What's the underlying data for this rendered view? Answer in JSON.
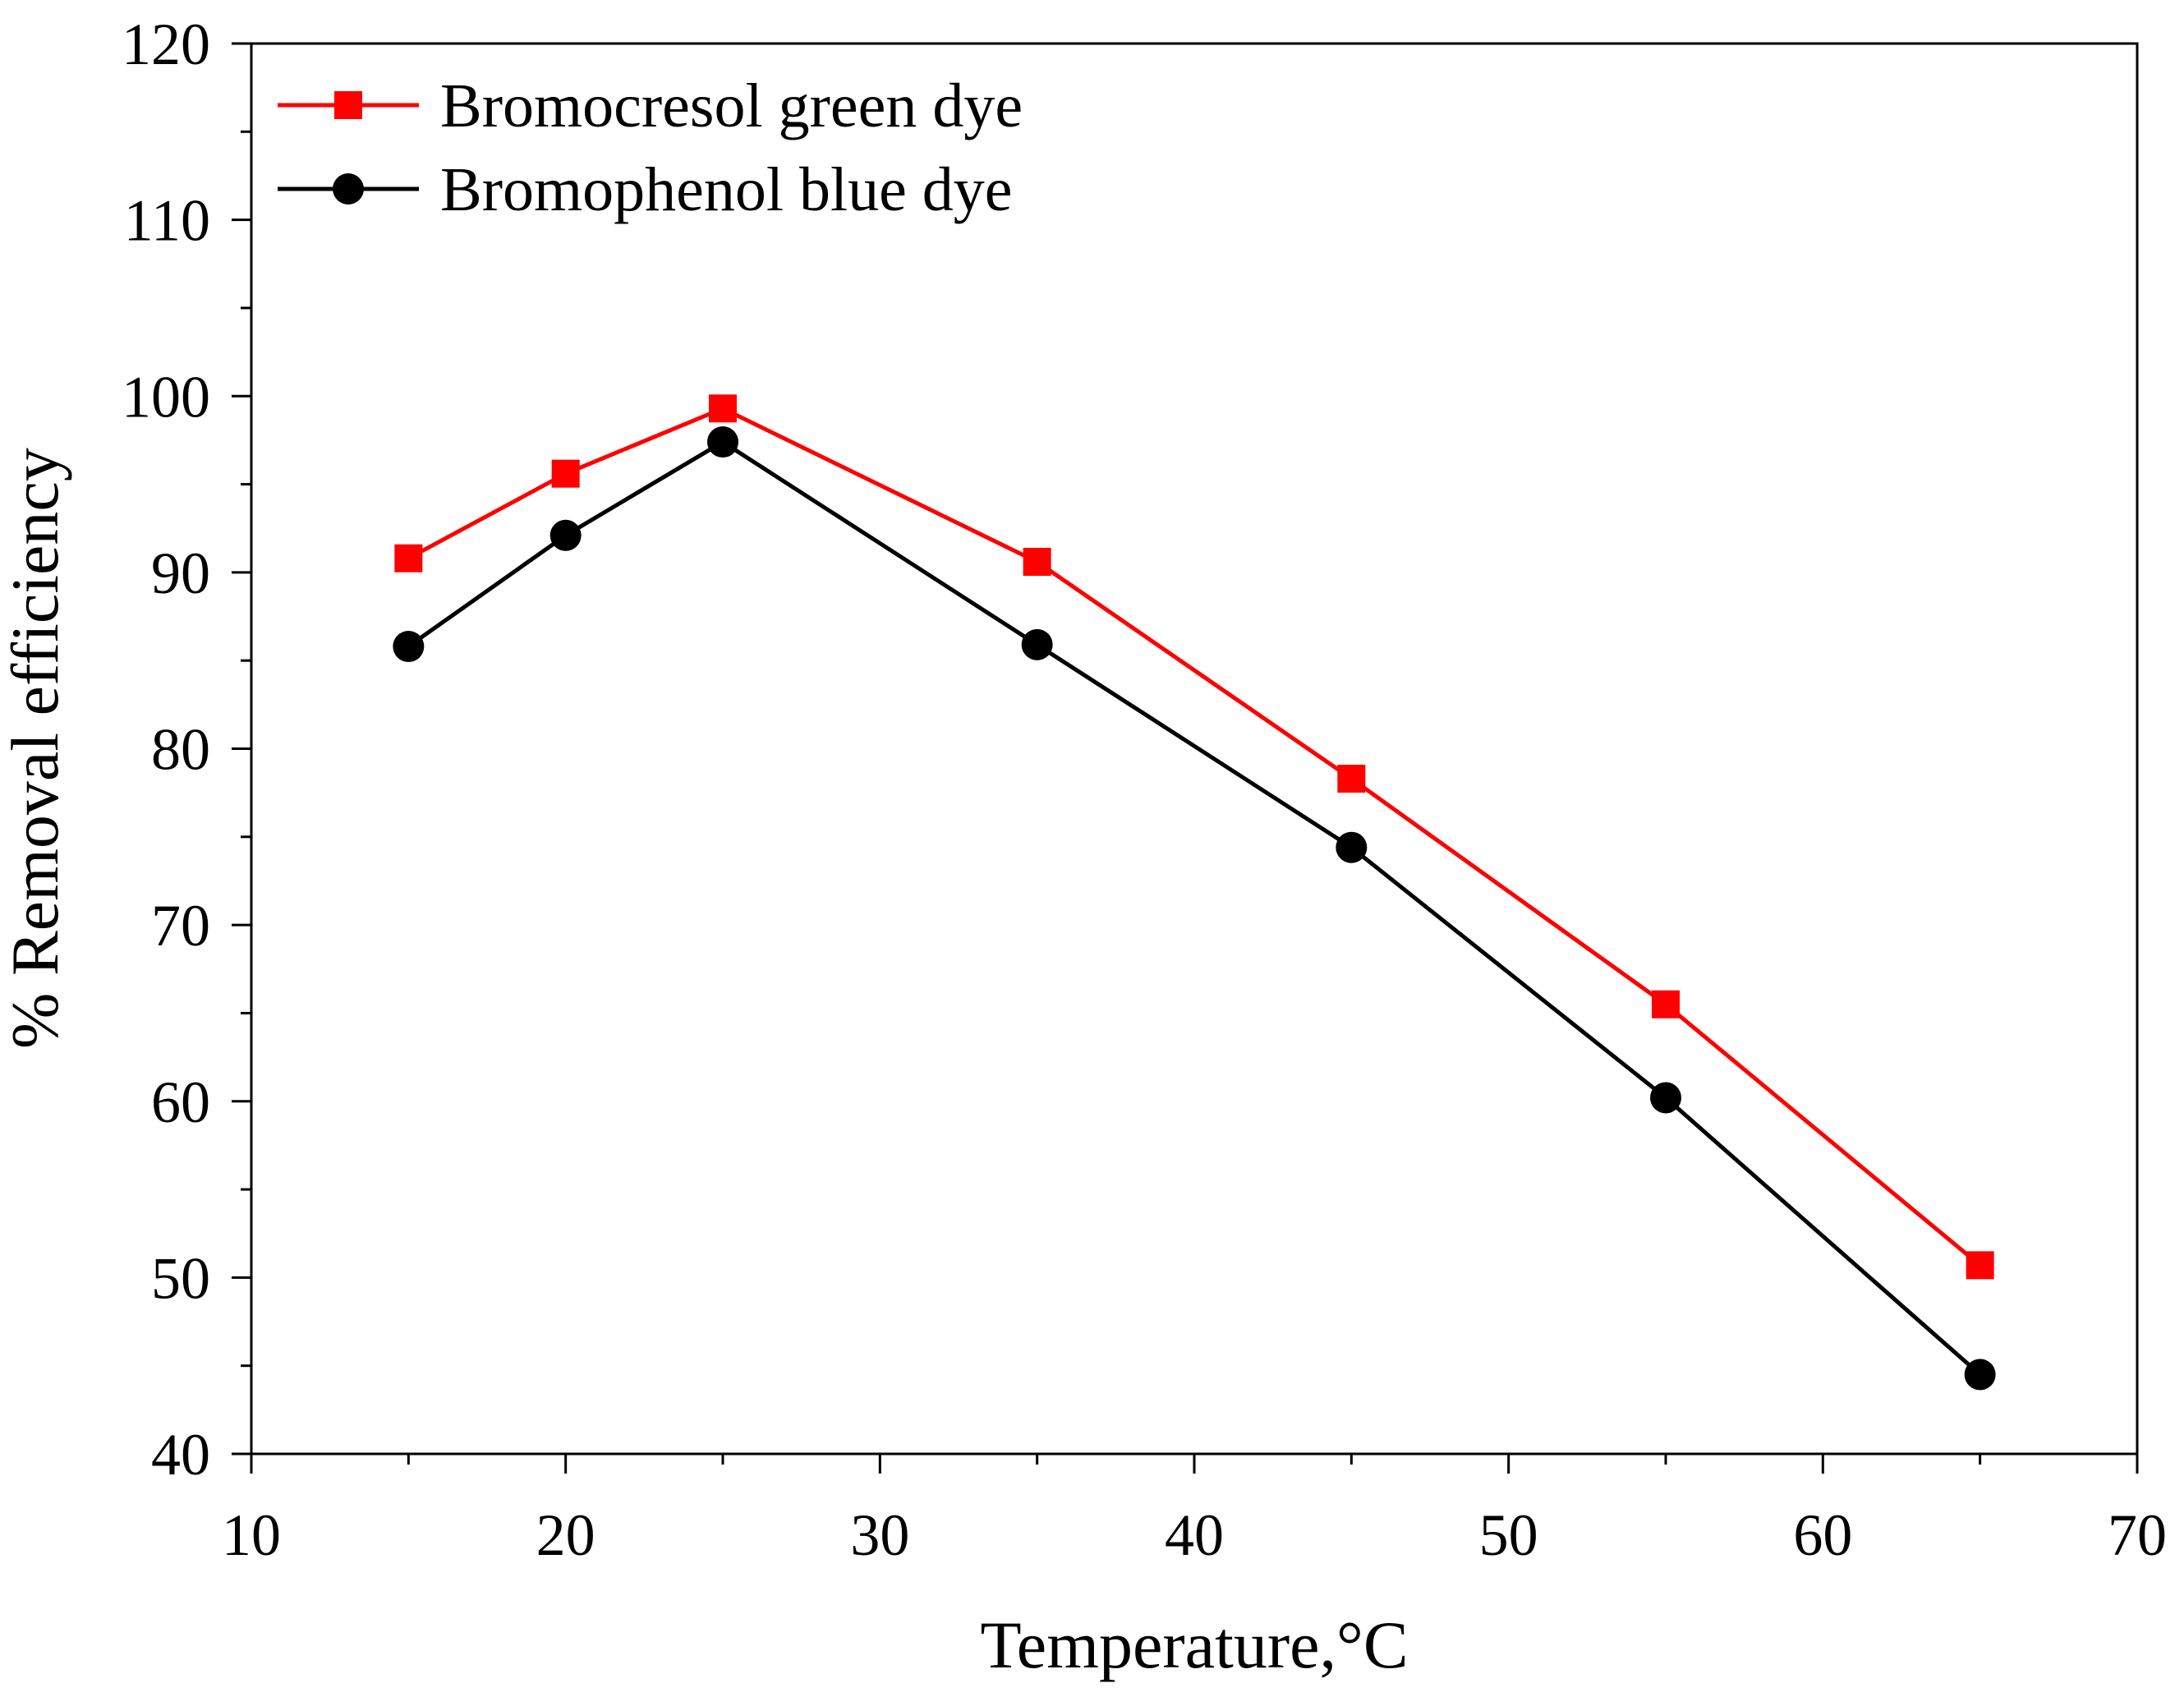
{
  "chart_data": {
    "type": "line",
    "title": "",
    "xlabel": "Temperature,°C",
    "ylabel": "% Removal efficiency",
    "xlim": [
      10,
      70
    ],
    "ylim": [
      40,
      120
    ],
    "x_ticks": [
      10,
      20,
      30,
      40,
      50,
      60,
      70
    ],
    "y_ticks": [
      40,
      50,
      60,
      70,
      80,
      90,
      100,
      110,
      120
    ],
    "x_tick_labels": [
      "10",
      "20",
      "30",
      "40",
      "50",
      "60",
      "70"
    ],
    "y_tick_labels": [
      "40",
      "50",
      "60",
      "70",
      "80",
      "90",
      "100",
      "110",
      "120"
    ],
    "grid": false,
    "legend_position": "top-left",
    "series": [
      {
        "name": "Bromocresol green dye",
        "color": "#ff0000",
        "marker": "square",
        "x": [
          15,
          20,
          25,
          35,
          45,
          55,
          65
        ],
        "y": [
          90.8,
          95.6,
          99.3,
          90.6,
          78.3,
          65.5,
          50.7
        ]
      },
      {
        "name": "Bromophenol blue dye",
        "color": "#000000",
        "marker": "circle",
        "x": [
          15,
          20,
          25,
          35,
          45,
          55,
          65
        ],
        "y": [
          85.8,
          92.1,
          97.4,
          85.9,
          74.4,
          60.2,
          44.5
        ]
      }
    ]
  }
}
